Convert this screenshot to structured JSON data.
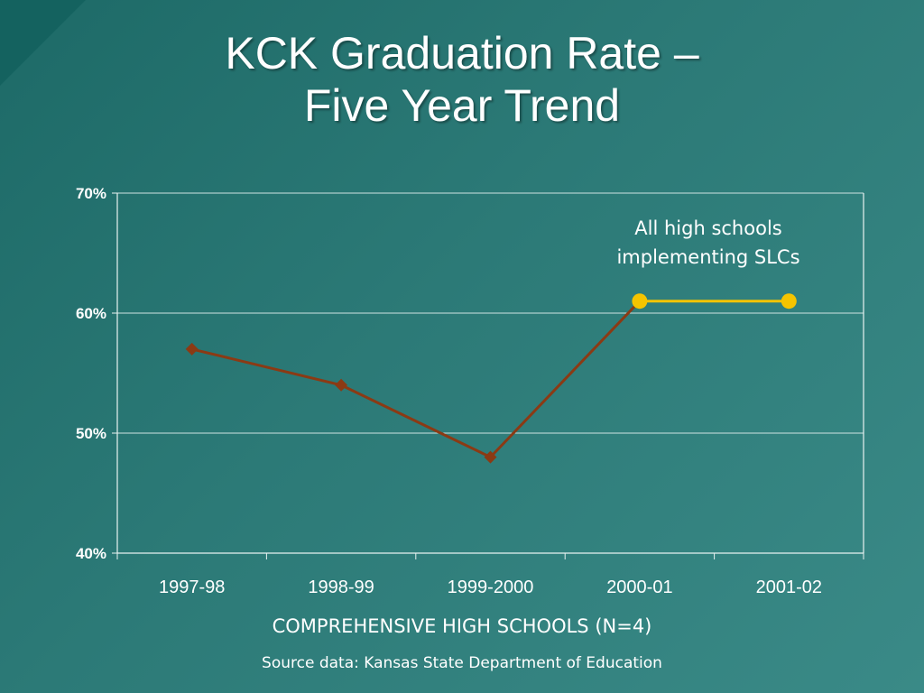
{
  "slide": {
    "title_line1": "KCK Graduation Rate –",
    "title_line2": "Five Year Trend",
    "source": "Source data: Kansas State Department of Education"
  },
  "chart_data": {
    "type": "line",
    "categories": [
      "1997-98",
      "1998-99",
      "1999-2000",
      "2000-01",
      "2001-02"
    ],
    "series": [
      {
        "values": [
          57,
          54,
          48,
          61,
          null
        ],
        "color": "#8b3a14",
        "marker": "diamond"
      },
      {
        "values": [
          null,
          null,
          null,
          61,
          61
        ],
        "color": "#f5c400",
        "marker": "circle"
      }
    ],
    "xlabel": "COMPREHENSIVE HIGH SCHOOLS (N=4)",
    "ylabel": "",
    "ylim": [
      40,
      70
    ],
    "yticks": [
      40,
      50,
      60,
      70
    ],
    "ytick_labels": [
      "40%",
      "50%",
      "60%",
      "70%"
    ],
    "grid": true,
    "annotations": [
      {
        "text_line1": "All high schools",
        "text_line2": "implementing SLCs"
      }
    ]
  }
}
